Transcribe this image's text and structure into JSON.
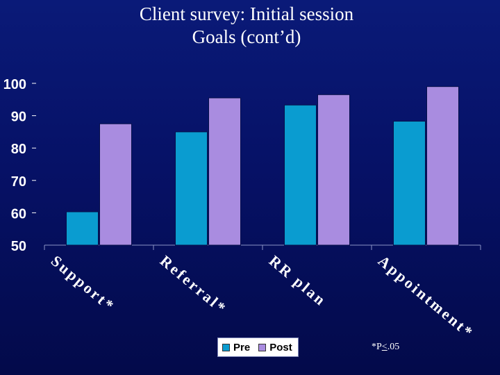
{
  "slide": {
    "title_line1": "Client survey: Initial session",
    "title_line2": "Goals (cont’d)",
    "footnote_prefix": "*P",
    "footnote_symbol": "<",
    "footnote_suffix": ".05"
  },
  "chart_data": {
    "type": "bar",
    "title": "Client survey: Initial session Goals (cont’d)",
    "categories": [
      "Support*",
      "Referral*",
      "RR plan",
      "Appointment*"
    ],
    "series": [
      {
        "name": "Pre",
        "color": "#0a9cd0",
        "values": [
          60.3,
          85.0,
          93.3,
          88.3
        ]
      },
      {
        "name": "Post",
        "color": "#a98ce0",
        "values": [
          87.5,
          95.5,
          96.5,
          99.0
        ]
      }
    ],
    "y_ticks": [
      "100",
      "90",
      "80",
      "70",
      "60",
      "50"
    ],
    "ylim": [
      50,
      100
    ],
    "xlabel": "",
    "ylabel": "",
    "grid": false,
    "legend_position": "bottom"
  }
}
